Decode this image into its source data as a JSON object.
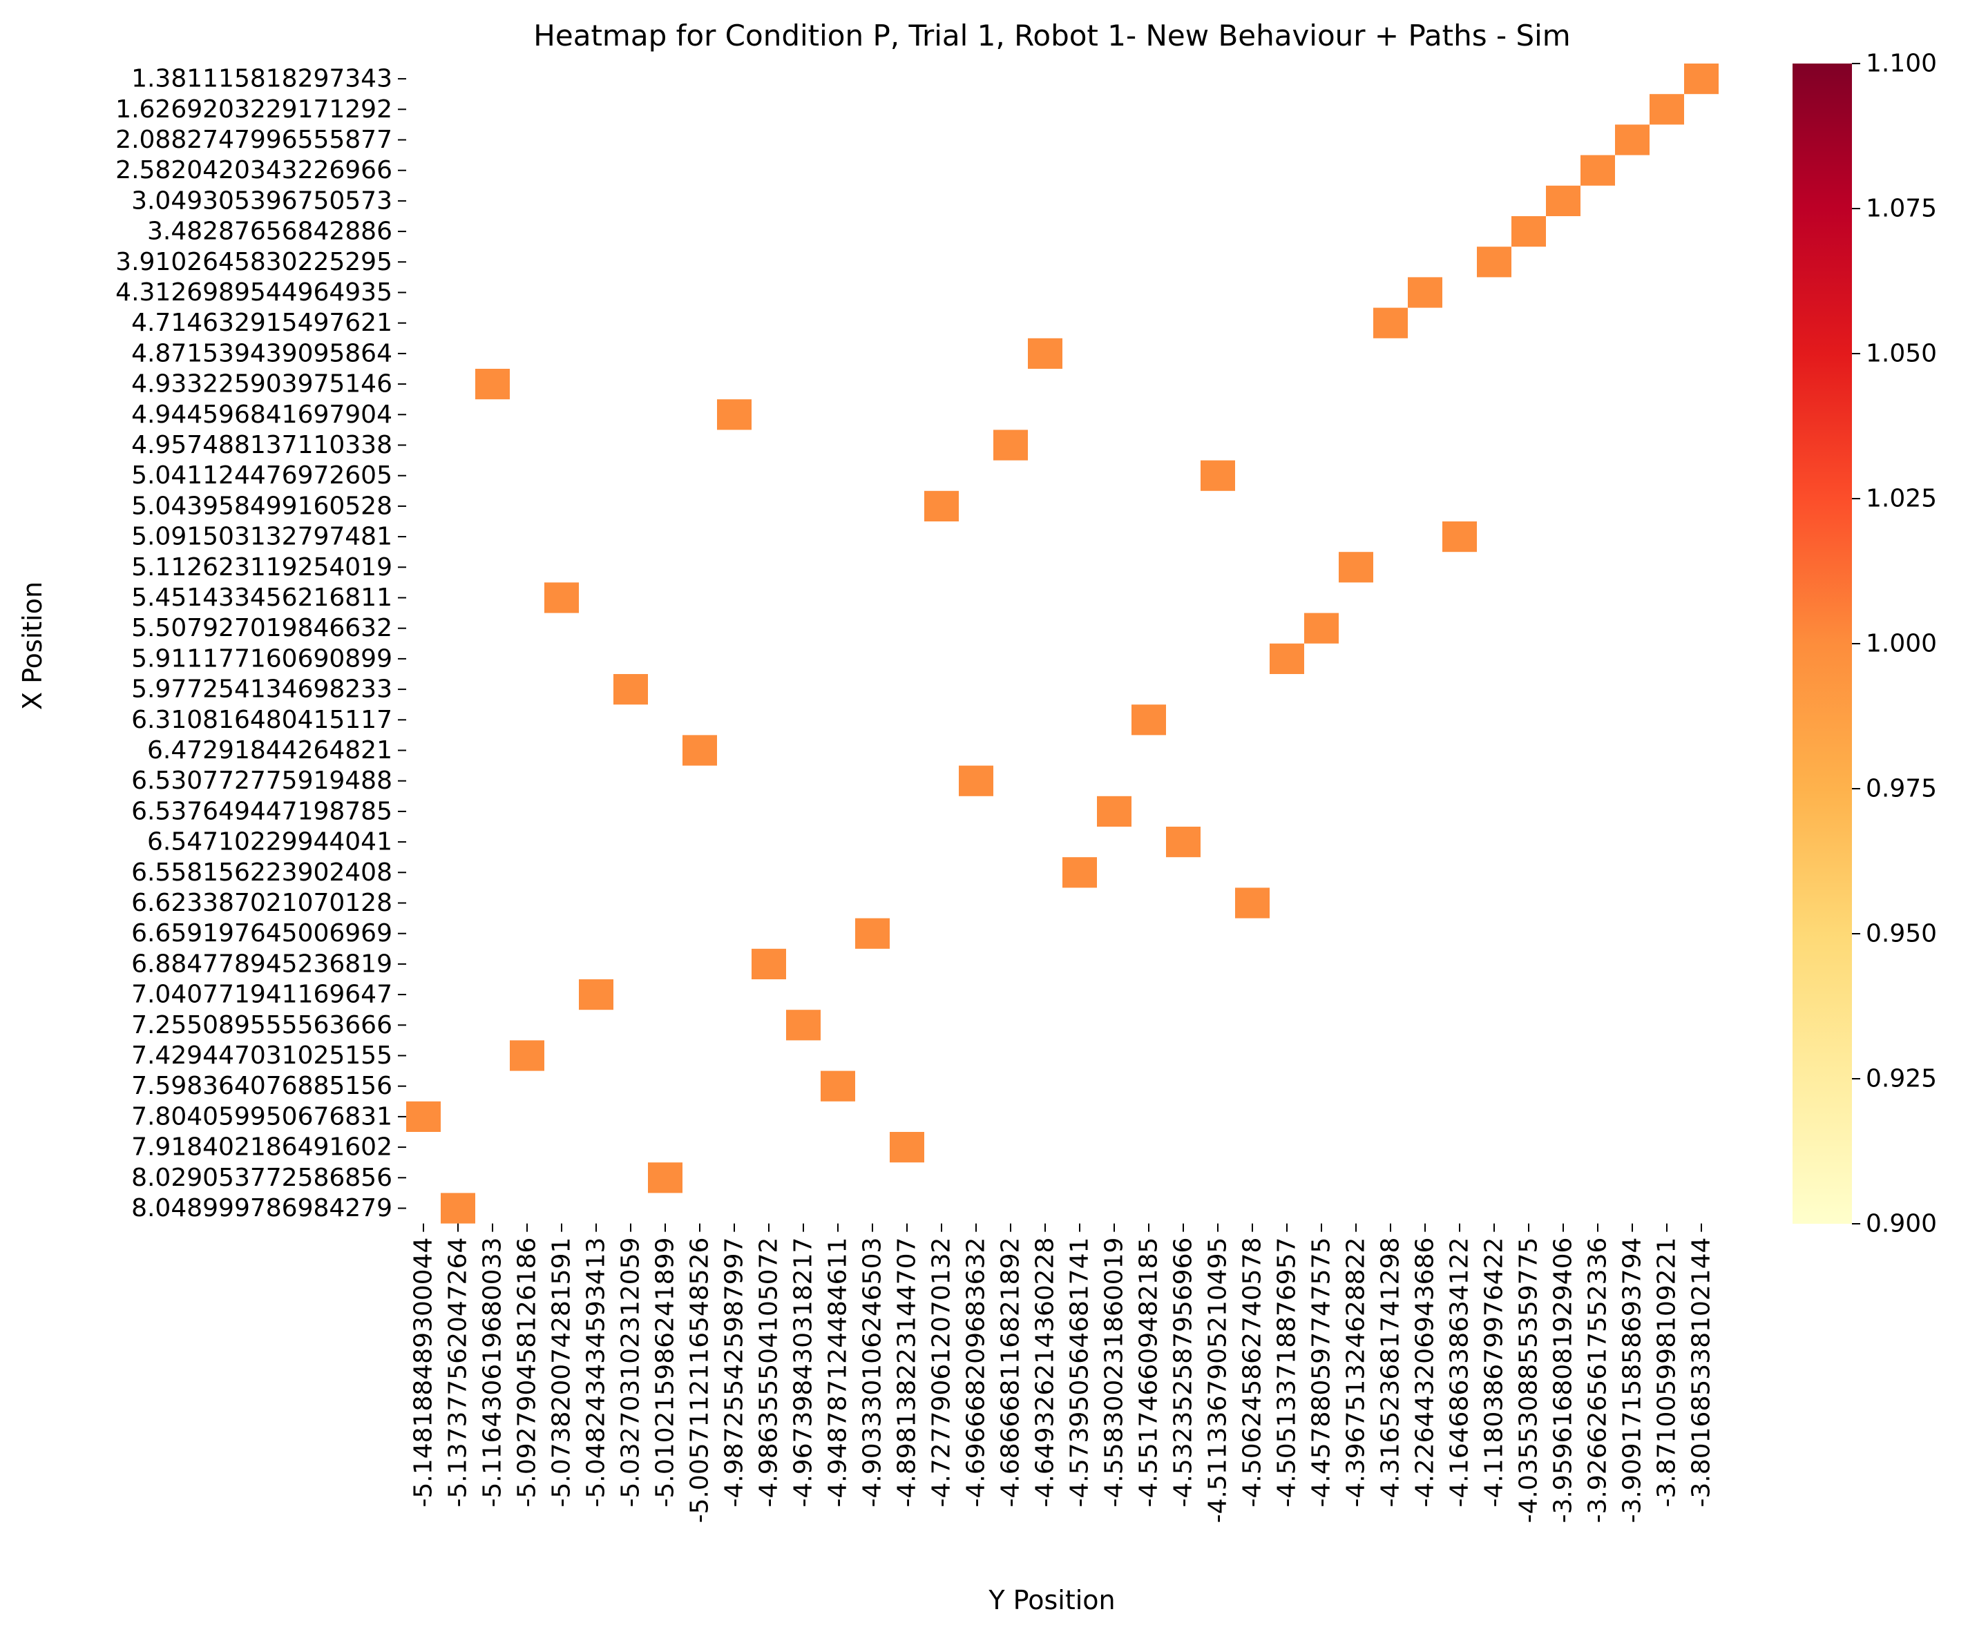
{
  "chart_data": {
    "type": "heatmap",
    "title": "Heatmap for Condition P, Trial 1, Robot 1- New Behaviour + Paths - Sim",
    "xlabel": "Y Position",
    "ylabel": "X Position",
    "x_categories": [
      "-5.148188489300044",
      "-5.137377562047264",
      "-5.116430619680033",
      "-5.092790458126186",
      "-5.073820074281591",
      "-5.048243434593413",
      "-5.032703102312059",
      "-5.010215986241899",
      "-5.005711211654852‍6",
      "-4.987255425987997",
      "-4.986355504105072",
      "-4.967398430318217",
      "-4.948787124484611",
      "-4.903330106246503",
      "-4.898138223144707",
      "-4.727790612070132",
      "-4.696668209683632",
      "-4.686668116821892",
      "-4.649326214360228",
      "-4.573950564681741",
      "-4.558300231860019",
      "-4.551746609482185",
      "-4.532352587956966",
      "-4.511336790521049‍5",
      "-4.506245862740578",
      "-4.505133718876957",
      "-4.457880597747575",
      "-4.396751324628822",
      "-4.316523681741298",
      "-4.226443206943686",
      "-4.164686338634122",
      "-4.118038679976422",
      "-4.035530885535977‍5",
      "-3.959616808192940‍6",
      "-3.926626561755233‍6",
      "-3.909171585869379‍4",
      "-3.871005998109221",
      "-3.801685338102144"
    ],
    "y_categories": [
      "1.381115818297343",
      "1.6269203229171292",
      "2.0882747996555877",
      "2.5820420343226966",
      "3.049305396750573",
      "3.48287656842886",
      "3.9102645830225295",
      "4.3126989544964935",
      "4.714632915497621",
      "4.871539439095864",
      "4.933225903975146",
      "4.944596841697904",
      "4.957488137110338",
      "5.041124476972605",
      "5.043958499160528",
      "5.091503132797481",
      "5.112623119254019",
      "5.451433456216811",
      "5.507927019846632",
      "5.911177160690899",
      "5.977254134698233",
      "6.310816480415117",
      "6.47291844264821",
      "6.530772775919488",
      "6.537649447198785",
      "6.54710229944041",
      "6.558156223902408",
      "6.623387021070128",
      "6.659197645006969",
      "6.884778945236819",
      "7.040771941169647",
      "7.255089555563666",
      "7.429447031025155",
      "7.598364076885156",
      "7.804059950676831",
      "7.918402186491602",
      "8.029053772586856",
      "8.048999786984279"
    ],
    "cells": [
      {
        "row": 0,
        "col": 37,
        "value": 1.0
      },
      {
        "row": 1,
        "col": 36,
        "value": 1.0
      },
      {
        "row": 2,
        "col": 35,
        "value": 1.0
      },
      {
        "row": 3,
        "col": 34,
        "value": 1.0
      },
      {
        "row": 4,
        "col": 33,
        "value": 1.0
      },
      {
        "row": 5,
        "col": 32,
        "value": 1.0
      },
      {
        "row": 6,
        "col": 31,
        "value": 1.0
      },
      {
        "row": 7,
        "col": 29,
        "value": 1.0
      },
      {
        "row": 8,
        "col": 28,
        "value": 1.0
      },
      {
        "row": 9,
        "col": 18,
        "value": 1.0
      },
      {
        "row": 10,
        "col": 2,
        "value": 1.0
      },
      {
        "row": 11,
        "col": 9,
        "value": 1.0
      },
      {
        "row": 12,
        "col": 17,
        "value": 1.0
      },
      {
        "row": 13,
        "col": 23,
        "value": 1.0
      },
      {
        "row": 14,
        "col": 15,
        "value": 1.0
      },
      {
        "row": 15,
        "col": 30,
        "value": 1.0
      },
      {
        "row": 16,
        "col": 27,
        "value": 1.0
      },
      {
        "row": 17,
        "col": 4,
        "value": 1.0
      },
      {
        "row": 18,
        "col": 26,
        "value": 1.0
      },
      {
        "row": 19,
        "col": 25,
        "value": 1.0
      },
      {
        "row": 20,
        "col": 6,
        "value": 1.0
      },
      {
        "row": 21,
        "col": 21,
        "value": 1.0
      },
      {
        "row": 22,
        "col": 8,
        "value": 1.0
      },
      {
        "row": 23,
        "col": 16,
        "value": 1.0
      },
      {
        "row": 24,
        "col": 20,
        "value": 1.0
      },
      {
        "row": 25,
        "col": 22,
        "value": 1.0
      },
      {
        "row": 26,
        "col": 19,
        "value": 1.0
      },
      {
        "row": 27,
        "col": 24,
        "value": 1.0
      },
      {
        "row": 28,
        "col": 13,
        "value": 1.0
      },
      {
        "row": 29,
        "col": 10,
        "value": 1.0
      },
      {
        "row": 30,
        "col": 5,
        "value": 1.0
      },
      {
        "row": 31,
        "col": 11,
        "value": 1.0
      },
      {
        "row": 32,
        "col": 3,
        "value": 1.0
      },
      {
        "row": 33,
        "col": 12,
        "value": 1.0
      },
      {
        "row": 34,
        "col": 0,
        "value": 1.0
      },
      {
        "row": 35,
        "col": 14,
        "value": 1.0
      },
      {
        "row": 36,
        "col": 7,
        "value": 1.0
      },
      {
        "row": 37,
        "col": 1,
        "value": 1.0
      }
    ],
    "colorbar": {
      "vmin": 0.9,
      "vmax": 1.1,
      "ticks": [
        "0.900",
        "0.925",
        "0.950",
        "0.975",
        "1.000",
        "1.025",
        "1.050",
        "1.075",
        "1.100"
      ],
      "colormap": "YlOrRd",
      "stops": [
        "#ffffcc",
        "#ffeda0",
        "#fed976",
        "#feb24c",
        "#fd8d3c",
        "#fc4e2a",
        "#e31a1c",
        "#bd0026",
        "#800026"
      ]
    },
    "grid": false,
    "legend": "none"
  }
}
